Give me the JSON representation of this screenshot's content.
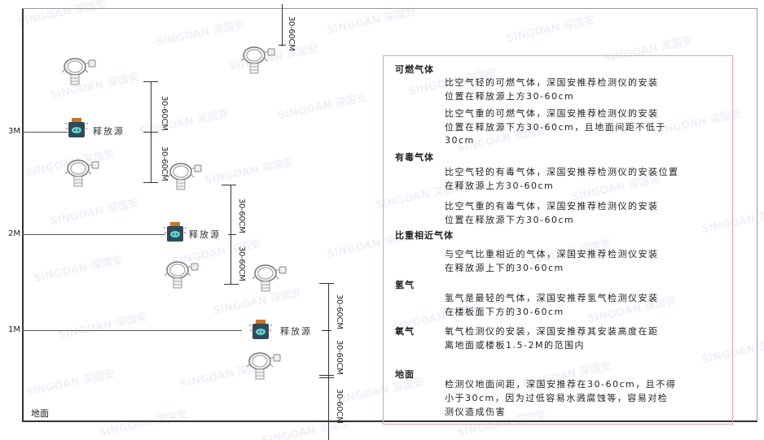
{
  "watermark": "SINGOAN 深国安",
  "levels": {
    "m3": "3M",
    "m2": "2M",
    "m1": "1M",
    "ground": "地面"
  },
  "dimension_label": "30-60CM",
  "source_label": "释放源",
  "colors": {
    "frame": "#555555",
    "box_border": "#e8a0a8",
    "source_body": "#2f4a5a",
    "source_cap": "#c8742a",
    "source_face": "#5fd0c8"
  },
  "panel": {
    "sections": [
      {
        "heading": "可燃气体",
        "paragraphs": [
          [
            "比空气轻的可燃气体，深国安推荐检测仪的安装",
            "位置在释放源上方30-60cm"
          ],
          [
            "比空气重的可燃气体，深国安推荐检测仪的安装",
            "位置在释放源下方30-60cm，且地面间距不低于",
            "30cm"
          ]
        ]
      },
      {
        "heading": "有毒气体",
        "paragraphs": [
          [
            "比空气轻的有毒气体，深国安推荐检测仪的安装位置",
            "在释放源上方30-60cm"
          ],
          [
            "比空气重的有毒气体，深国安推荐检测仪的安装",
            "位置在释放源下方30-60cm"
          ]
        ]
      },
      {
        "heading": "比重相近气体",
        "paragraphs": [
          [
            "与空气比重相近的气体，深国安推荐检测仪安装",
            "在释放源上下的30-60cm"
          ]
        ]
      },
      {
        "heading": "氢气",
        "paragraphs": [
          [
            "氢气是最轻的气体，深国安推荐氢气检测仪安装",
            "在楼板面下方的30-60cm"
          ]
        ]
      },
      {
        "heading": "氧气",
        "paragraphs": [
          [
            "氧气检测仪的安装，深国安推荐其安装高度在距",
            "离地面或楼板1.5-2M的范围内"
          ]
        ]
      },
      {
        "heading": "地面",
        "paragraphs": [
          [
            "检测仪地面间距，深国安推荐在30-60cm，且不得",
            "小于30cm，因为过低容易水溅腐蚀等，容易对检",
            "测仪造成伤害"
          ]
        ]
      }
    ]
  }
}
